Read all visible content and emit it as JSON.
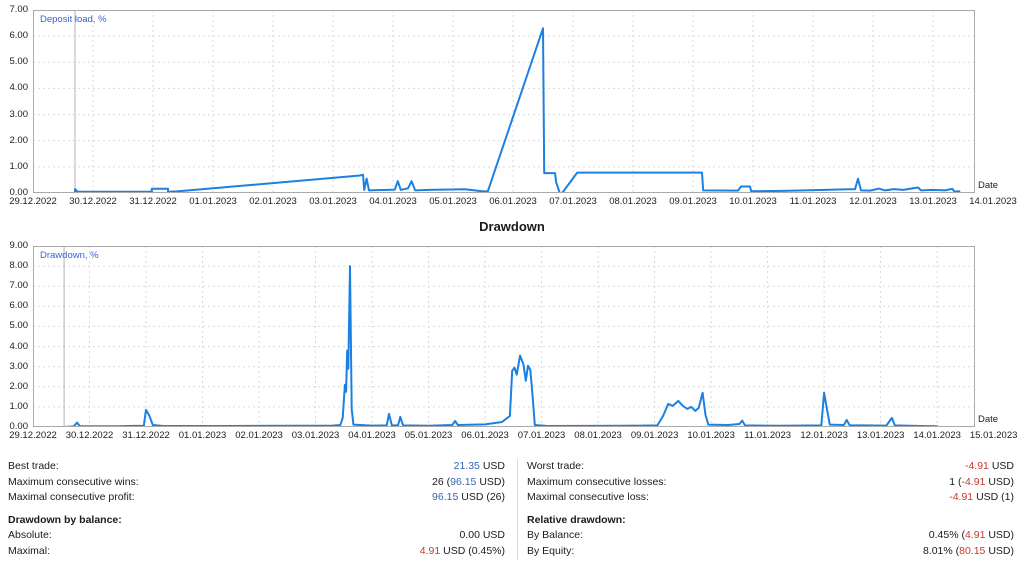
{
  "colors": {
    "line": "#1c80e3",
    "legend": "#3565cf",
    "grid": "#d9d9d9",
    "frame": "#a9a9a9",
    "start_line": "#b5b5b5",
    "axis_text": "#1c1c1c",
    "title_text": "#1a1a1a",
    "text": "#1b1b1b",
    "value_blue": "#3566b0",
    "value_red": "#c23b2e"
  },
  "chart_data": [
    {
      "type": "line",
      "title": "",
      "legend": "Deposit load, %",
      "corner_label": "Date",
      "ylim": [
        0,
        7
      ],
      "y_ticks": [
        "7.00",
        "6.00",
        "5.00",
        "4.00",
        "3.00",
        "2.00",
        "1.00",
        "0.00"
      ],
      "x_ticks": [
        "29.12.2022",
        "30.12.2022",
        "31.12.2022",
        "01.01.2023",
        "02.01.2023",
        "03.01.2023",
        "04.01.2023",
        "05.01.2023",
        "06.01.2023",
        "07.01.2023",
        "08.01.2023",
        "09.01.2023",
        "10.01.2023",
        "11.01.2023",
        "12.01.2023",
        "13.01.2023",
        "14.01.2023"
      ],
      "x_range_days": 15.7,
      "start_day": 0.7,
      "grid": true,
      "legend_position": "top-left",
      "series": [
        {
          "name": "Deposit load, %",
          "points": [
            [
              0.7,
              0.0
            ],
            [
              0.7,
              0.15
            ],
            [
              0.74,
              0.05
            ],
            [
              1.98,
              0.05
            ],
            [
              1.98,
              0.16
            ],
            [
              2.25,
              0.16
            ],
            [
              2.25,
              0.05
            ],
            [
              2.4,
              0.06
            ],
            [
              5.45,
              0.67
            ],
            [
              5.5,
              0.7
            ],
            [
              5.52,
              0.12
            ],
            [
              5.56,
              0.55
            ],
            [
              5.6,
              0.1
            ],
            [
              5.9,
              0.12
            ],
            [
              6.03,
              0.13
            ],
            [
              6.08,
              0.45
            ],
            [
              6.13,
              0.12
            ],
            [
              6.25,
              0.18
            ],
            [
              6.31,
              0.45
            ],
            [
              6.37,
              0.1
            ],
            [
              6.6,
              0.12
            ],
            [
              7.2,
              0.14
            ],
            [
              7.5,
              0.06
            ],
            [
              7.58,
              0.06
            ],
            [
              8.5,
              6.3
            ],
            [
              8.52,
              0.76
            ],
            [
              8.7,
              0.76
            ],
            [
              8.72,
              0.4
            ],
            [
              8.78,
              0.0
            ],
            [
              8.82,
              0.0
            ],
            [
              9.07,
              0.78
            ],
            [
              11.15,
              0.78
            ],
            [
              11.17,
              0.1
            ],
            [
              11.75,
              0.09
            ],
            [
              11.8,
              0.25
            ],
            [
              11.95,
              0.25
            ],
            [
              11.97,
              0.07
            ],
            [
              12.5,
              0.08
            ],
            [
              13.2,
              0.12
            ],
            [
              13.6,
              0.14
            ],
            [
              13.7,
              0.14
            ],
            [
              13.75,
              0.55
            ],
            [
              13.8,
              0.1
            ],
            [
              13.95,
              0.09
            ],
            [
              14.1,
              0.17
            ],
            [
              14.2,
              0.1
            ],
            [
              14.35,
              0.15
            ],
            [
              14.5,
              0.12
            ],
            [
              14.75,
              0.21
            ],
            [
              14.8,
              0.1
            ],
            [
              15.0,
              0.12
            ],
            [
              15.2,
              0.1
            ],
            [
              15.32,
              0.16
            ],
            [
              15.36,
              0.05
            ],
            [
              15.44,
              0.07
            ]
          ]
        }
      ]
    },
    {
      "type": "line",
      "title": "Drawdown",
      "legend": "Drawdown, %",
      "corner_label": "Date",
      "ylim": [
        0,
        9
      ],
      "y_ticks": [
        "9.00",
        "8.00",
        "7.00",
        "6.00",
        "5.00",
        "4.00",
        "3.00",
        "2.00",
        "1.00",
        "0.00"
      ],
      "x_ticks": [
        "29.12.2022",
        "30.12.2022",
        "31.12.2022",
        "01.01.2023",
        "02.01.2023",
        "03.01.2023",
        "04.01.2023",
        "05.01.2023",
        "06.01.2023",
        "07.01.2023",
        "08.01.2023",
        "09.01.2023",
        "10.01.2023",
        "11.01.2023",
        "12.01.2023",
        "13.01.2023",
        "14.01.2023",
        "15.01.2023"
      ],
      "x_range_days": 16.67,
      "start_day": 0.55,
      "grid": true,
      "legend_position": "top-left",
      "series": [
        {
          "name": "Drawdown, %",
          "points": [
            [
              0.55,
              0.0
            ],
            [
              0.72,
              0.03
            ],
            [
              0.78,
              0.22
            ],
            [
              0.83,
              0.04
            ],
            [
              1.5,
              0.04
            ],
            [
              1.96,
              0.06
            ],
            [
              2.0,
              0.85
            ],
            [
              2.06,
              0.55
            ],
            [
              2.12,
              0.1
            ],
            [
              2.3,
              0.05
            ],
            [
              3.5,
              0.05
            ],
            [
              5.3,
              0.07
            ],
            [
              5.44,
              0.1
            ],
            [
              5.48,
              0.45
            ],
            [
              5.52,
              2.1
            ],
            [
              5.54,
              1.75
            ],
            [
              5.56,
              3.8
            ],
            [
              5.58,
              2.9
            ],
            [
              5.61,
              8.0
            ],
            [
              5.64,
              0.9
            ],
            [
              5.67,
              0.12
            ],
            [
              6.0,
              0.07
            ],
            [
              6.26,
              0.08
            ],
            [
              6.3,
              0.65
            ],
            [
              6.35,
              0.09
            ],
            [
              6.46,
              0.08
            ],
            [
              6.5,
              0.5
            ],
            [
              6.55,
              0.08
            ],
            [
              7.0,
              0.06
            ],
            [
              7.42,
              0.1
            ],
            [
              7.47,
              0.3
            ],
            [
              7.52,
              0.1
            ],
            [
              8.0,
              0.13
            ],
            [
              8.3,
              0.25
            ],
            [
              8.44,
              0.55
            ],
            [
              8.48,
              2.8
            ],
            [
              8.52,
              2.95
            ],
            [
              8.56,
              2.6
            ],
            [
              8.62,
              3.55
            ],
            [
              8.68,
              3.1
            ],
            [
              8.72,
              2.3
            ],
            [
              8.76,
              3.05
            ],
            [
              8.8,
              2.85
            ],
            [
              8.84,
              1.6
            ],
            [
              8.88,
              0.1
            ],
            [
              9.1,
              0.05
            ],
            [
              10.5,
              0.06
            ],
            [
              11.05,
              0.08
            ],
            [
              11.15,
              0.55
            ],
            [
              11.24,
              1.15
            ],
            [
              11.32,
              1.05
            ],
            [
              11.42,
              1.3
            ],
            [
              11.5,
              1.05
            ],
            [
              11.58,
              0.9
            ],
            [
              11.65,
              1.0
            ],
            [
              11.72,
              0.8
            ],
            [
              11.78,
              0.95
            ],
            [
              11.85,
              1.7
            ],
            [
              11.9,
              0.6
            ],
            [
              11.95,
              0.12
            ],
            [
              12.3,
              0.1
            ],
            [
              12.5,
              0.15
            ],
            [
              12.55,
              0.32
            ],
            [
              12.6,
              0.08
            ],
            [
              13.2,
              0.06
            ],
            [
              13.95,
              0.08
            ],
            [
              14.0,
              1.7
            ],
            [
              14.05,
              0.9
            ],
            [
              14.1,
              0.12
            ],
            [
              14.35,
              0.1
            ],
            [
              14.4,
              0.35
            ],
            [
              14.45,
              0.09
            ],
            [
              15.1,
              0.07
            ],
            [
              15.2,
              0.45
            ],
            [
              15.25,
              0.08
            ],
            [
              15.7,
              0.05
            ],
            [
              16.0,
              0.04
            ]
          ]
        }
      ]
    }
  ],
  "stats": {
    "left": {
      "rows": [
        {
          "type": "stat",
          "label": "Best trade:",
          "value": [
            {
              "text": "21.35",
              "color": "blue"
            },
            {
              "text": " USD",
              "color": "plain"
            }
          ]
        },
        {
          "type": "stat",
          "label": "Maximum consecutive wins:",
          "value": [
            {
              "text": "26 (",
              "color": "plain"
            },
            {
              "text": "96.15",
              "color": "blue"
            },
            {
              "text": " USD)",
              "color": "plain"
            }
          ]
        },
        {
          "type": "stat",
          "label": "Maximal consecutive profit:",
          "value": [
            {
              "text": "96.15",
              "color": "blue"
            },
            {
              "text": " USD (26)",
              "color": "plain"
            }
          ]
        },
        {
          "type": "header",
          "label": "Drawdown by balance:"
        },
        {
          "type": "stat",
          "label": "Absolute:",
          "value": [
            {
              "text": "0.00 USD",
              "color": "plain"
            }
          ]
        },
        {
          "type": "stat",
          "label": "Maximal:",
          "value": [
            {
              "text": "4.91",
              "color": "red"
            },
            {
              "text": " USD (0.45%)",
              "color": "plain"
            }
          ]
        }
      ]
    },
    "right": {
      "rows": [
        {
          "type": "stat",
          "label": "Worst trade:",
          "value": [
            {
              "text": "-4.91",
              "color": "red"
            },
            {
              "text": " USD",
              "color": "plain"
            }
          ]
        },
        {
          "type": "stat",
          "label": "Maximum consecutive losses:",
          "value": [
            {
              "text": "1 (",
              "color": "plain"
            },
            {
              "text": "-4.91",
              "color": "red"
            },
            {
              "text": " USD)",
              "color": "plain"
            }
          ]
        },
        {
          "type": "stat",
          "label": "Maximal consecutive loss:",
          "value": [
            {
              "text": "-4.91",
              "color": "red"
            },
            {
              "text": " USD (1)",
              "color": "plain"
            }
          ]
        },
        {
          "type": "header",
          "label": "Relative drawdown:"
        },
        {
          "type": "stat",
          "label": "By Balance:",
          "value": [
            {
              "text": "0.45% (",
              "color": "plain"
            },
            {
              "text": "4.91",
              "color": "red"
            },
            {
              "text": " USD)",
              "color": "plain"
            }
          ]
        },
        {
          "type": "stat",
          "label": "By Equity:",
          "value": [
            {
              "text": "8.01% (",
              "color": "plain"
            },
            {
              "text": "80.15",
              "color": "red"
            },
            {
              "text": " USD)",
              "color": "plain"
            }
          ]
        }
      ]
    }
  }
}
